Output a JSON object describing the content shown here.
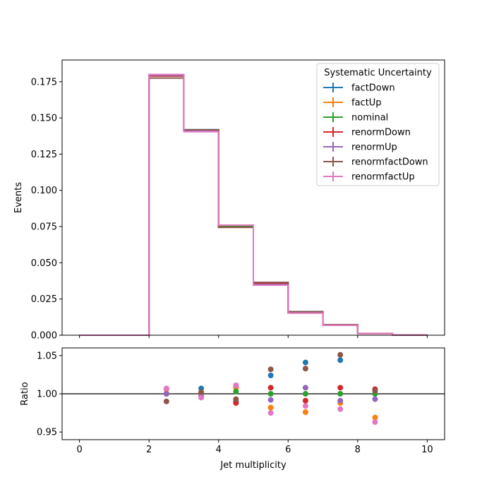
{
  "chart_data": [
    {
      "type": "line",
      "subtype": "step-histogram",
      "title": "",
      "xlabel": "",
      "ylabel": "Events",
      "xlim": [
        -0.5,
        10.5
      ],
      "ylim": [
        0.0,
        0.19
      ],
      "bin_edges": [
        0,
        1,
        2,
        3,
        4,
        5,
        6,
        7,
        8,
        9,
        10
      ],
      "x_ticks": [
        "0",
        "2",
        "4",
        "6",
        "8",
        "10"
      ],
      "y_ticks": [
        "0.000",
        "0.025",
        "0.050",
        "0.075",
        "0.100",
        "0.125",
        "0.150",
        "0.175"
      ],
      "legend": {
        "title": "Systematic Uncertainty",
        "position": "top-right"
      },
      "series": [
        {
          "name": "factDown",
          "color": "#1f77b4",
          "values": [
            0,
            0,
            0.179,
            0.1419,
            0.075,
            0.036,
            0.0163,
            0.0072,
            0.0012,
            0.0002
          ]
        },
        {
          "name": "factUp",
          "color": "#ff7f0e",
          "values": [
            0,
            0,
            0.18,
            0.141,
            0.0755,
            0.035,
            0.0153,
            0.0068,
            0.0011,
            0.0002
          ]
        },
        {
          "name": "nominal",
          "color": "#2ca02c",
          "values": [
            0,
            0,
            0.179,
            0.1415,
            0.0752,
            0.0355,
            0.0157,
            0.007,
            0.0012,
            0.0002
          ]
        },
        {
          "name": "renormDown",
          "color": "#d62728",
          "values": [
            0,
            0,
            0.179,
            0.1415,
            0.0745,
            0.036,
            0.0155,
            0.0071,
            0.0012,
            0.0002
          ]
        },
        {
          "name": "renormUp",
          "color": "#9467bd",
          "values": [
            0,
            0,
            0.1795,
            0.1412,
            0.076,
            0.035,
            0.0159,
            0.0069,
            0.0012,
            0.0002
          ]
        },
        {
          "name": "renormfactDown",
          "color": "#8c564b",
          "values": [
            0,
            0,
            0.1775,
            0.1418,
            0.0745,
            0.0365,
            0.0162,
            0.0073,
            0.0012,
            0.0002
          ]
        },
        {
          "name": "renormfactUp",
          "color": "#e377c2",
          "values": [
            0,
            0,
            0.18,
            0.1405,
            0.076,
            0.0345,
            0.0153,
            0.0069,
            0.0011,
            0.0002
          ]
        }
      ]
    },
    {
      "type": "scatter",
      "title": "",
      "xlabel": "Jet multiplicity",
      "ylabel": "Ratio",
      "xlim": [
        -0.5,
        10.5
      ],
      "ylim": [
        0.94,
        1.06
      ],
      "x_ticks": [
        "0",
        "2",
        "4",
        "6",
        "8",
        "10"
      ],
      "y_ticks": [
        "0.95",
        "1.00",
        "1.05"
      ],
      "reference_line": 1.0,
      "x": [
        2.5,
        3.5,
        4.5,
        5.5,
        6.5,
        7.5,
        8.5
      ],
      "series": [
        {
          "name": "factDown",
          "color": "#1f77b4",
          "values": [
            1.0,
            1.007,
            0.99,
            1.024,
            1.041,
            1.044,
            1.0
          ]
        },
        {
          "name": "factUp",
          "color": "#ff7f0e",
          "values": [
            1.006,
            0.997,
            1.008,
            0.982,
            0.976,
            0.988,
            0.969
          ]
        },
        {
          "name": "nominal",
          "color": "#2ca02c",
          "values": [
            1.0,
            1.0,
            1.003,
            1.0,
            1.0,
            1.0,
            1.0
          ]
        },
        {
          "name": "renormDown",
          "color": "#d62728",
          "values": [
            1.0,
            1.001,
            0.988,
            1.008,
            0.991,
            1.008,
            1.006
          ]
        },
        {
          "name": "renormUp",
          "color": "#9467bd",
          "values": [
            1.0,
            0.997,
            1.011,
            0.992,
            1.008,
            0.991,
            0.993
          ]
        },
        {
          "name": "renormfactDown",
          "color": "#8c564b",
          "values": [
            0.99,
            1.002,
            0.993,
            1.032,
            1.033,
            1.051,
            1.004
          ]
        },
        {
          "name": "renormfactUp",
          "color": "#e377c2",
          "values": [
            1.007,
            0.995,
            1.011,
            0.975,
            0.984,
            0.98,
            0.963
          ]
        }
      ]
    }
  ]
}
